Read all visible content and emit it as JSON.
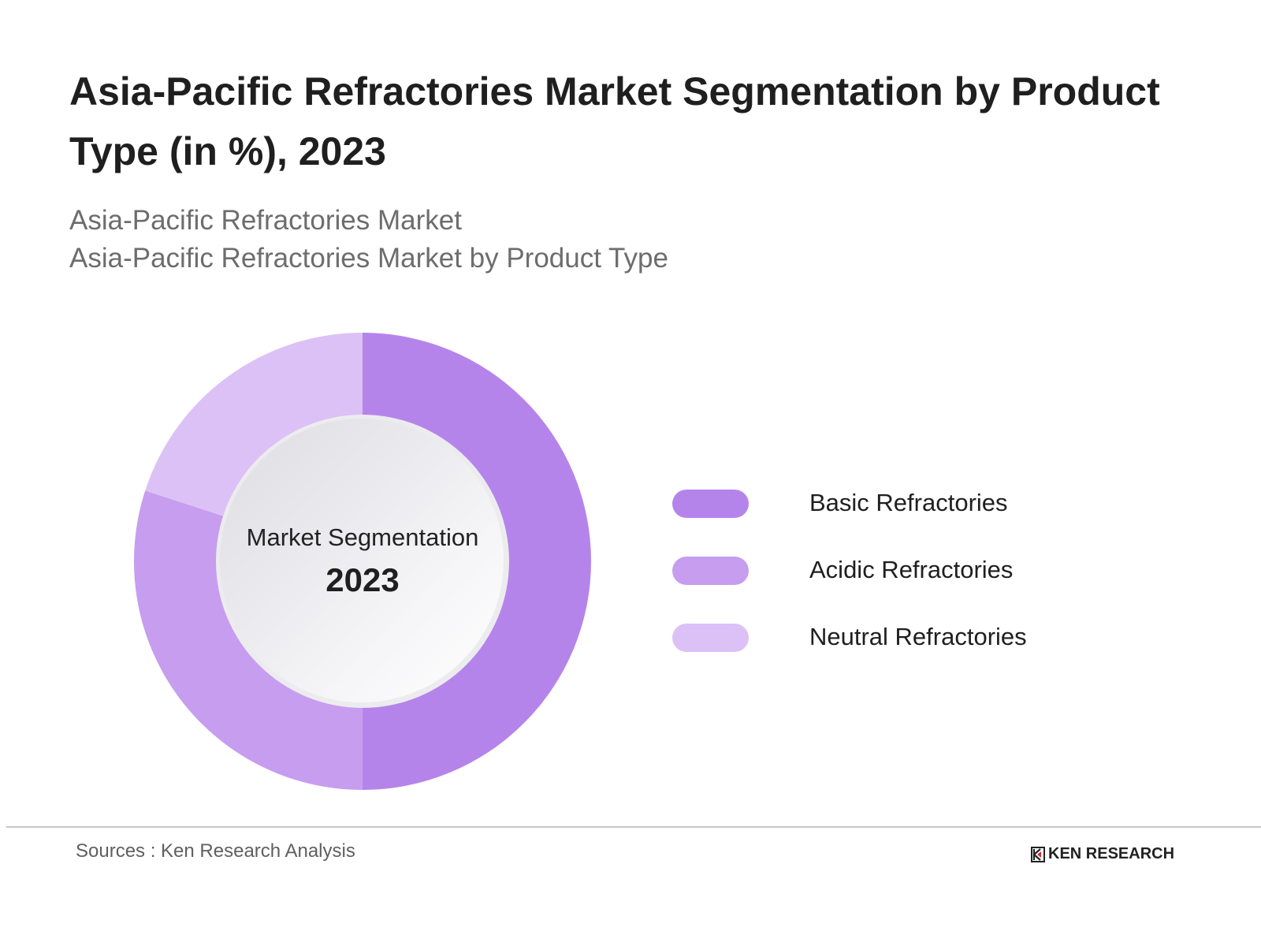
{
  "header": {
    "title": "Asia-Pacific Refractories Market Segmentation by Product Type (in %), 2023",
    "subtitle_lines": [
      "Asia-Pacific Refractories Market",
      "Asia-Pacific Refractories Market by Product Type"
    ]
  },
  "center": {
    "title": "Market Segmentation",
    "year": "2023"
  },
  "legend": [
    {
      "label": "Basic Refractories",
      "color": "#b584eb"
    },
    {
      "label": "Acidic Refractories",
      "color": "#c79def"
    },
    {
      "label": "Neutral Refractories",
      "color": "#dcc1f6"
    }
  ],
  "footer": {
    "source": "Sources : Ken Research Analysis",
    "logo_text": "KEN RESEARCH",
    "logo_icon": "ken-research-k-icon"
  },
  "chart_data": {
    "type": "pie",
    "subtype": "donut",
    "title": "Asia-Pacific Refractories Market Segmentation by Product Type (in %), 2023",
    "categories": [
      "Basic Refractories",
      "Acidic Refractories",
      "Neutral Refractories"
    ],
    "values": [
      50,
      30,
      20
    ],
    "colors": [
      "#b584eb",
      "#c79def",
      "#dcc1f6"
    ],
    "center_text": [
      "Market Segmentation",
      "2023"
    ],
    "legend_position": "right",
    "start_angle": "12 o'clock, clockwise"
  }
}
